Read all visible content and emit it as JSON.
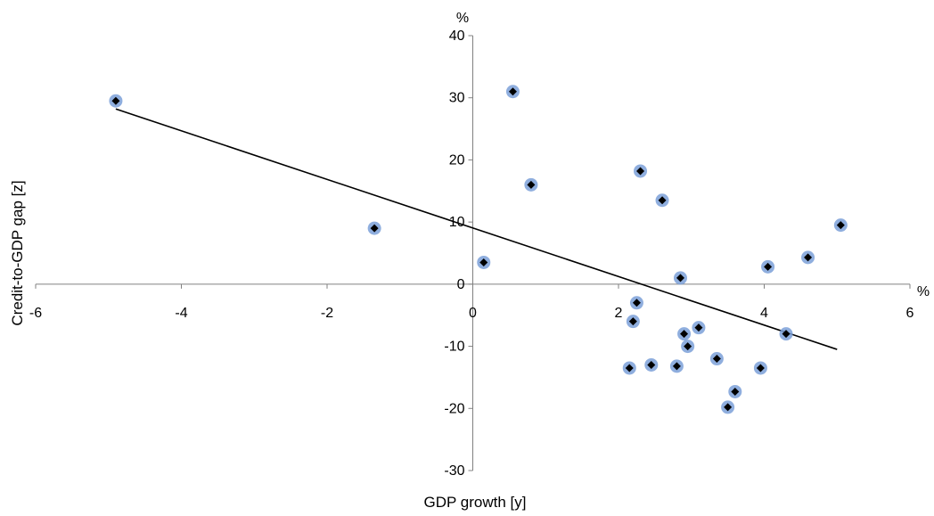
{
  "chart_data": {
    "type": "scatter",
    "title": "",
    "xlabel": "GDP growth [y]",
    "ylabel": "Credit-to-GDP gap [z]",
    "x_unit": "%",
    "y_unit": "%",
    "xlim": [
      -6,
      6
    ],
    "ylim": [
      -30,
      40
    ],
    "x_ticks": [
      -6,
      -4,
      -2,
      0,
      2,
      4,
      6
    ],
    "y_ticks": [
      -30,
      -20,
      -10,
      0,
      10,
      20,
      30,
      40
    ],
    "grid": false,
    "legend": "none",
    "marker_color": "#7ba0d8",
    "marker_edge_color": "#000000",
    "series": [
      {
        "points": [
          {
            "x": -4.9,
            "y": 29.5
          },
          {
            "x": -1.35,
            "y": 9.0
          },
          {
            "x": 0.15,
            "y": 3.5
          },
          {
            "x": 0.55,
            "y": 31.0
          },
          {
            "x": 0.8,
            "y": 16.0
          },
          {
            "x": 2.15,
            "y": -13.5
          },
          {
            "x": 2.2,
            "y": -6.0
          },
          {
            "x": 2.25,
            "y": -3.0
          },
          {
            "x": 2.3,
            "y": 18.2
          },
          {
            "x": 2.45,
            "y": -13.0
          },
          {
            "x": 2.6,
            "y": 13.5
          },
          {
            "x": 2.8,
            "y": -13.2
          },
          {
            "x": 2.85,
            "y": 1.0
          },
          {
            "x": 2.9,
            "y": -8.0
          },
          {
            "x": 2.95,
            "y": -10.0
          },
          {
            "x": 3.1,
            "y": -7.0
          },
          {
            "x": 3.35,
            "y": -12.0
          },
          {
            "x": 3.5,
            "y": -19.8
          },
          {
            "x": 3.6,
            "y": -17.3
          },
          {
            "x": 3.95,
            "y": -13.5
          },
          {
            "x": 4.05,
            "y": 2.8
          },
          {
            "x": 4.3,
            "y": -8.0
          },
          {
            "x": 4.6,
            "y": 4.3
          },
          {
            "x": 5.05,
            "y": 9.5
          }
        ]
      }
    ],
    "trendline": {
      "x": [
        -4.9,
        5.0
      ],
      "y": [
        28.2,
        -10.5
      ]
    }
  }
}
